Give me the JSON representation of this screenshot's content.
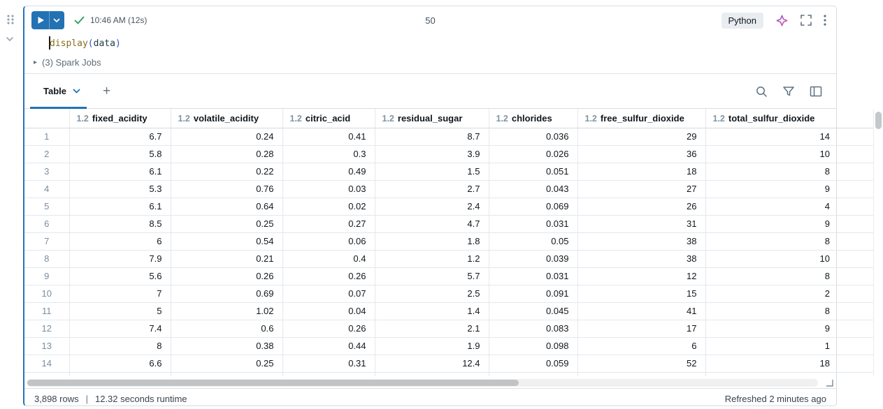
{
  "cell": {
    "run_time": "10:46 AM (12s)",
    "execution_label": "50",
    "language": "Python",
    "code": {
      "fn": "display",
      "open": "(",
      "arg": "data",
      "close": ")"
    },
    "spark_toggle": "▸",
    "spark_jobs": "(3) Spark Jobs"
  },
  "results": {
    "tab_label": "Table",
    "add_label": "+"
  },
  "table": {
    "columns": [
      {
        "type": "1.2",
        "name": "fixed_acidity"
      },
      {
        "type": "1.2",
        "name": "volatile_acidity"
      },
      {
        "type": "1.2",
        "name": "citric_acid"
      },
      {
        "type": "1.2",
        "name": "residual_sugar"
      },
      {
        "type": "1.2",
        "name": "chlorides"
      },
      {
        "type": "1.2",
        "name": "free_sulfur_dioxide"
      },
      {
        "type": "1.2",
        "name": "total_sulfur_dioxide"
      }
    ],
    "rows": [
      {
        "n": "1",
        "values": [
          "6.7",
          "0.24",
          "0.41",
          "8.7",
          "0.036",
          "29",
          "14"
        ]
      },
      {
        "n": "2",
        "values": [
          "5.8",
          "0.28",
          "0.3",
          "3.9",
          "0.026",
          "36",
          "10"
        ]
      },
      {
        "n": "3",
        "values": [
          "6.1",
          "0.22",
          "0.49",
          "1.5",
          "0.051",
          "18",
          "8"
        ]
      },
      {
        "n": "4",
        "values": [
          "5.3",
          "0.76",
          "0.03",
          "2.7",
          "0.043",
          "27",
          "9"
        ]
      },
      {
        "n": "5",
        "values": [
          "6.1",
          "0.64",
          "0.02",
          "2.4",
          "0.069",
          "26",
          "4"
        ]
      },
      {
        "n": "6",
        "values": [
          "8.5",
          "0.25",
          "0.27",
          "4.7",
          "0.031",
          "31",
          "9"
        ]
      },
      {
        "n": "7",
        "values": [
          "6",
          "0.54",
          "0.06",
          "1.8",
          "0.05",
          "38",
          "8"
        ]
      },
      {
        "n": "8",
        "values": [
          "7.9",
          "0.21",
          "0.4",
          "1.2",
          "0.039",
          "38",
          "10"
        ]
      },
      {
        "n": "9",
        "values": [
          "5.6",
          "0.26",
          "0.26",
          "5.7",
          "0.031",
          "12",
          "8"
        ]
      },
      {
        "n": "10",
        "values": [
          "7",
          "0.69",
          "0.07",
          "2.5",
          "0.091",
          "15",
          "2"
        ]
      },
      {
        "n": "11",
        "values": [
          "5",
          "1.02",
          "0.04",
          "1.4",
          "0.045",
          "41",
          "8"
        ]
      },
      {
        "n": "12",
        "values": [
          "7.4",
          "0.6",
          "0.26",
          "2.1",
          "0.083",
          "17",
          "9"
        ]
      },
      {
        "n": "13",
        "values": [
          "8",
          "0.38",
          "0.44",
          "1.9",
          "0.098",
          "6",
          "1"
        ]
      },
      {
        "n": "14",
        "values": [
          "6.6",
          "0.25",
          "0.31",
          "12.4",
          "0.059",
          "52",
          "18"
        ]
      }
    ]
  },
  "footer": {
    "row_count": "3,898 rows",
    "separator": "|",
    "runtime": "12.32 seconds runtime",
    "refreshed": "Refreshed 2 minutes ago"
  },
  "colors": {
    "accent_blue": "#2272B4",
    "success_green": "#2E9E5B",
    "type_icon_gray": "#8095A7",
    "grid_border": "#E3E8ED"
  }
}
